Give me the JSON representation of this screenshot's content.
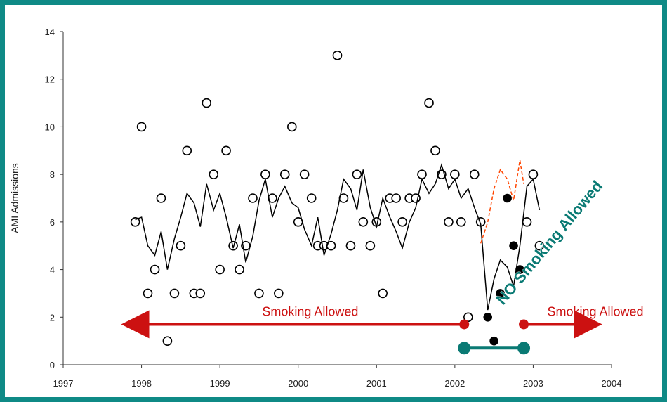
{
  "chart_data": {
    "type": "scatter",
    "title": "",
    "xlabel": "",
    "ylabel": "AMI Admissions",
    "xlim": [
      1997,
      2004
    ],
    "ylim": [
      0,
      14
    ],
    "x_ticks": [
      "1997",
      "1998",
      "1999",
      "2000",
      "2001",
      "2002",
      "2003",
      "2004"
    ],
    "y_ticks": [
      "0",
      "2",
      "4",
      "6",
      "8",
      "10",
      "12",
      "14"
    ],
    "grid": false,
    "legend": "none",
    "series": [
      {
        "marker": "open-circle",
        "color": "#000000",
        "points": [
          [
            1997.92,
            6
          ],
          [
            1998.0,
            10
          ],
          [
            1998.08,
            3
          ],
          [
            1998.17,
            4
          ],
          [
            1998.25,
            7
          ],
          [
            1998.33,
            1
          ],
          [
            1998.42,
            3
          ],
          [
            1998.5,
            5
          ],
          [
            1998.58,
            9
          ],
          [
            1998.67,
            3
          ],
          [
            1998.75,
            3
          ],
          [
            1998.83,
            11
          ],
          [
            1998.92,
            8
          ],
          [
            1999.0,
            4
          ],
          [
            1999.08,
            9
          ],
          [
            1999.17,
            5
          ],
          [
            1999.25,
            4
          ],
          [
            1999.33,
            5
          ],
          [
            1999.42,
            7
          ],
          [
            1999.5,
            3
          ],
          [
            1999.58,
            8
          ],
          [
            1999.67,
            7
          ],
          [
            1999.75,
            3
          ],
          [
            1999.83,
            8
          ],
          [
            1999.92,
            10
          ],
          [
            2000.0,
            6
          ],
          [
            2000.08,
            8
          ],
          [
            2000.17,
            7
          ],
          [
            2000.25,
            5
          ],
          [
            2000.33,
            5
          ],
          [
            2000.42,
            5
          ],
          [
            2000.5,
            13
          ],
          [
            2000.58,
            7
          ],
          [
            2000.67,
            5
          ],
          [
            2000.75,
            8
          ],
          [
            2000.83,
            6
          ],
          [
            2000.92,
            5
          ],
          [
            2001.0,
            6
          ],
          [
            2001.08,
            3
          ],
          [
            2001.17,
            7
          ],
          [
            2001.25,
            7
          ],
          [
            2001.33,
            6
          ],
          [
            2001.42,
            7
          ],
          [
            2001.5,
            7
          ],
          [
            2001.58,
            8
          ],
          [
            2001.67,
            11
          ],
          [
            2001.75,
            9
          ],
          [
            2001.83,
            8
          ],
          [
            2001.92,
            6
          ],
          [
            2002.0,
            8
          ],
          [
            2002.08,
            6
          ],
          [
            2002.17,
            2
          ],
          [
            2002.25,
            8
          ],
          [
            2002.33,
            6
          ],
          [
            2002.92,
            6
          ],
          [
            2003.0,
            8
          ],
          [
            2003.08,
            5
          ]
        ]
      },
      {
        "marker": "filled-circle",
        "color": "#000000",
        "points": [
          [
            2002.42,
            2
          ],
          [
            2002.5,
            1
          ],
          [
            2002.58,
            3
          ],
          [
            2002.67,
            7
          ],
          [
            2002.75,
            5
          ],
          [
            2002.83,
            4
          ]
        ]
      },
      {
        "type": "line",
        "style": "solid",
        "color": "#000000",
        "points": [
          [
            1997.92,
            6.1
          ],
          [
            1998.0,
            6.2
          ],
          [
            1998.08,
            5.0
          ],
          [
            1998.17,
            4.6
          ],
          [
            1998.25,
            5.6
          ],
          [
            1998.33,
            4.0
          ],
          [
            1998.42,
            5.3
          ],
          [
            1998.5,
            6.2
          ],
          [
            1998.58,
            7.2
          ],
          [
            1998.67,
            6.8
          ],
          [
            1998.75,
            5.8
          ],
          [
            1998.83,
            7.6
          ],
          [
            1998.92,
            6.5
          ],
          [
            1999.0,
            7.2
          ],
          [
            1999.08,
            6.2
          ],
          [
            1999.17,
            4.9
          ],
          [
            1999.25,
            5.9
          ],
          [
            1999.33,
            4.3
          ],
          [
            1999.42,
            5.4
          ],
          [
            1999.5,
            6.9
          ],
          [
            1999.58,
            7.8
          ],
          [
            1999.67,
            6.2
          ],
          [
            1999.75,
            7.0
          ],
          [
            1999.83,
            7.5
          ],
          [
            1999.92,
            6.8
          ],
          [
            2000.0,
            6.6
          ],
          [
            2000.08,
            5.7
          ],
          [
            2000.17,
            5.0
          ],
          [
            2000.25,
            6.2
          ],
          [
            2000.33,
            4.6
          ],
          [
            2000.42,
            5.5
          ],
          [
            2000.5,
            6.5
          ],
          [
            2000.58,
            7.8
          ],
          [
            2000.67,
            7.4
          ],
          [
            2000.75,
            6.5
          ],
          [
            2000.83,
            8.2
          ],
          [
            2000.92,
            6.6
          ],
          [
            2001.0,
            5.8
          ],
          [
            2001.08,
            7.0
          ],
          [
            2001.17,
            6.2
          ],
          [
            2001.25,
            5.6
          ],
          [
            2001.33,
            4.9
          ],
          [
            2001.42,
            6.0
          ],
          [
            2001.5,
            6.6
          ],
          [
            2001.58,
            7.8
          ],
          [
            2001.67,
            7.2
          ],
          [
            2001.75,
            7.6
          ],
          [
            2001.83,
            8.4
          ],
          [
            2001.92,
            7.4
          ],
          [
            2002.0,
            7.8
          ],
          [
            2002.08,
            7.0
          ],
          [
            2002.17,
            7.4
          ],
          [
            2002.25,
            6.6
          ],
          [
            2002.33,
            5.9
          ],
          [
            2002.42,
            2.3
          ],
          [
            2002.5,
            3.6
          ],
          [
            2002.58,
            4.4
          ],
          [
            2002.67,
            4.1
          ],
          [
            2002.75,
            3.3
          ],
          [
            2002.83,
            5.0
          ],
          [
            2002.92,
            7.5
          ],
          [
            2003.0,
            7.8
          ],
          [
            2003.08,
            6.5
          ]
        ]
      },
      {
        "type": "line",
        "style": "dashed",
        "color": "#ff4500",
        "points": [
          [
            2002.33,
            5.1
          ],
          [
            2002.42,
            6.0
          ],
          [
            2002.5,
            7.4
          ],
          [
            2002.58,
            8.2
          ],
          [
            2002.67,
            7.8
          ],
          [
            2002.75,
            6.9
          ],
          [
            2002.83,
            8.6
          ],
          [
            2002.88,
            7.6
          ]
        ]
      }
    ],
    "annotations": [
      {
        "text": "Smoking Allowed",
        "color": "#cc1111",
        "x_range": [
          1997.65,
          2002.12
        ],
        "y": 1.7
      },
      {
        "text": "Smoking Allowed",
        "color": "#cc1111",
        "x_range": [
          2002.88,
          2003.97
        ],
        "y": 1.7
      },
      {
        "text": "NO Smoking Allowed",
        "color": "#0a7a74",
        "x_range": [
          2002.12,
          2002.88
        ],
        "y": 0.7
      }
    ]
  }
}
